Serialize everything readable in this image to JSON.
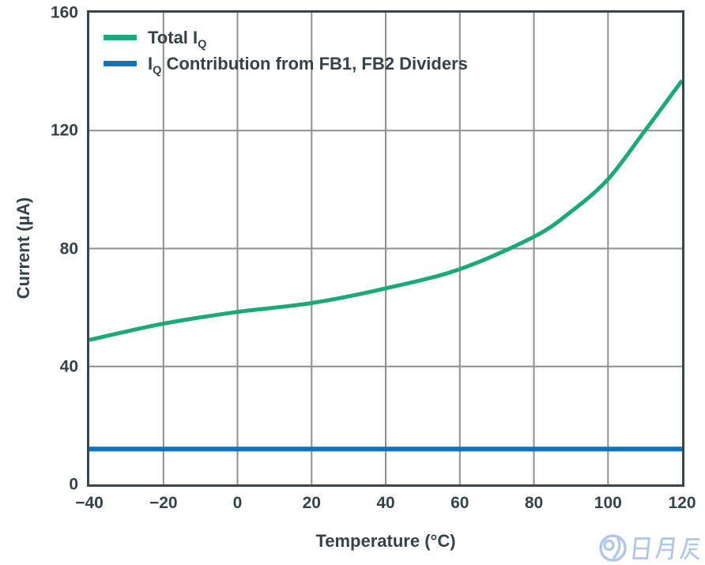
{
  "chart_data": {
    "type": "line",
    "title": "",
    "xlabel": "Temperature (°C)",
    "ylabel": "Current (µA)",
    "xlim": [
      -40,
      120
    ],
    "ylim": [
      0,
      160
    ],
    "grid": true,
    "legend_position": "top-left",
    "x_ticks": {
      "values": [
        -40,
        -20,
        0,
        20,
        40,
        60,
        80,
        100,
        120
      ],
      "labels": [
        "−40",
        "−20",
        "0",
        "20",
        "40",
        "60",
        "80",
        "100",
        "120"
      ]
    },
    "y_ticks": {
      "values": [
        0,
        40,
        80,
        120,
        160
      ],
      "labels": [
        "0",
        "40",
        "80",
        "120",
        "160"
      ]
    },
    "series": [
      {
        "name": "Total IQ",
        "legend": {
          "prefix": "Total I",
          "sub": "Q",
          "rest": ""
        },
        "color": "#1CA878",
        "line_width": 5,
        "smooth": true,
        "points": [
          [
            -40,
            49
          ],
          [
            -20,
            54.5
          ],
          [
            0,
            58.5
          ],
          [
            20,
            61.5
          ],
          [
            40,
            66.5
          ],
          [
            60,
            73
          ],
          [
            80,
            84
          ],
          [
            90,
            92.5
          ],
          [
            100,
            103.5
          ],
          [
            110,
            120
          ],
          [
            120,
            137
          ]
        ]
      },
      {
        "name": "IQ Contribution from FB1, FB2 Dividers",
        "legend": {
          "prefix": "I",
          "sub": "Q",
          "rest": " Contribution from FB1, FB2 Dividers"
        },
        "color": "#1173B8",
        "line_width": 6,
        "smooth": false,
        "points": [
          [
            -40,
            12
          ],
          [
            120,
            12
          ]
        ]
      }
    ]
  },
  "colors": {
    "text": "#36424A",
    "axis_frame": "#3A444D",
    "grid": "#8F8F8F",
    "background": "#FFFFFF",
    "watermark": "#AFC6E4"
  },
  "watermark": {
    "text": "日月辰"
  }
}
